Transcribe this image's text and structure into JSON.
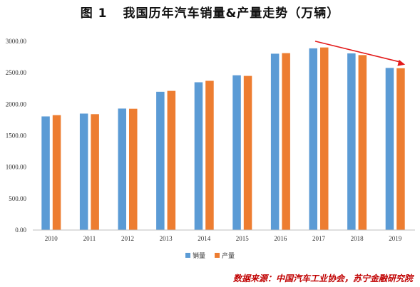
{
  "figure": {
    "number": "图 1",
    "title": "我国历年汽车销量&产量走势（万辆）",
    "source": "数据来源：中国汽车工业协会，苏宁金融研究院"
  },
  "chart_data": {
    "type": "bar",
    "categories": [
      "2010",
      "2011",
      "2012",
      "2013",
      "2014",
      "2015",
      "2016",
      "2017",
      "2018",
      "2019"
    ],
    "series": [
      {
        "name": "销量",
        "color": "#5b9bd5",
        "values": [
          1806,
          1851,
          1931,
          2198,
          2349,
          2460,
          2803,
          2888,
          2808,
          2577
        ]
      },
      {
        "name": "产量",
        "color": "#ed7d31",
        "values": [
          1826,
          1842,
          1928,
          2212,
          2372,
          2450,
          2812,
          2902,
          2781,
          2572
        ]
      }
    ],
    "yticks": [
      "0.00",
      "500.00",
      "1000.00",
      "1500.00",
      "2000.00",
      "2500.00",
      "3000.00"
    ],
    "ylim": [
      0,
      3000
    ],
    "grid": false,
    "legend_position": "bottom",
    "annotation": {
      "type": "arrow",
      "color": "#e31b1b",
      "meaning": "downward trend 2017 to 2019"
    }
  }
}
